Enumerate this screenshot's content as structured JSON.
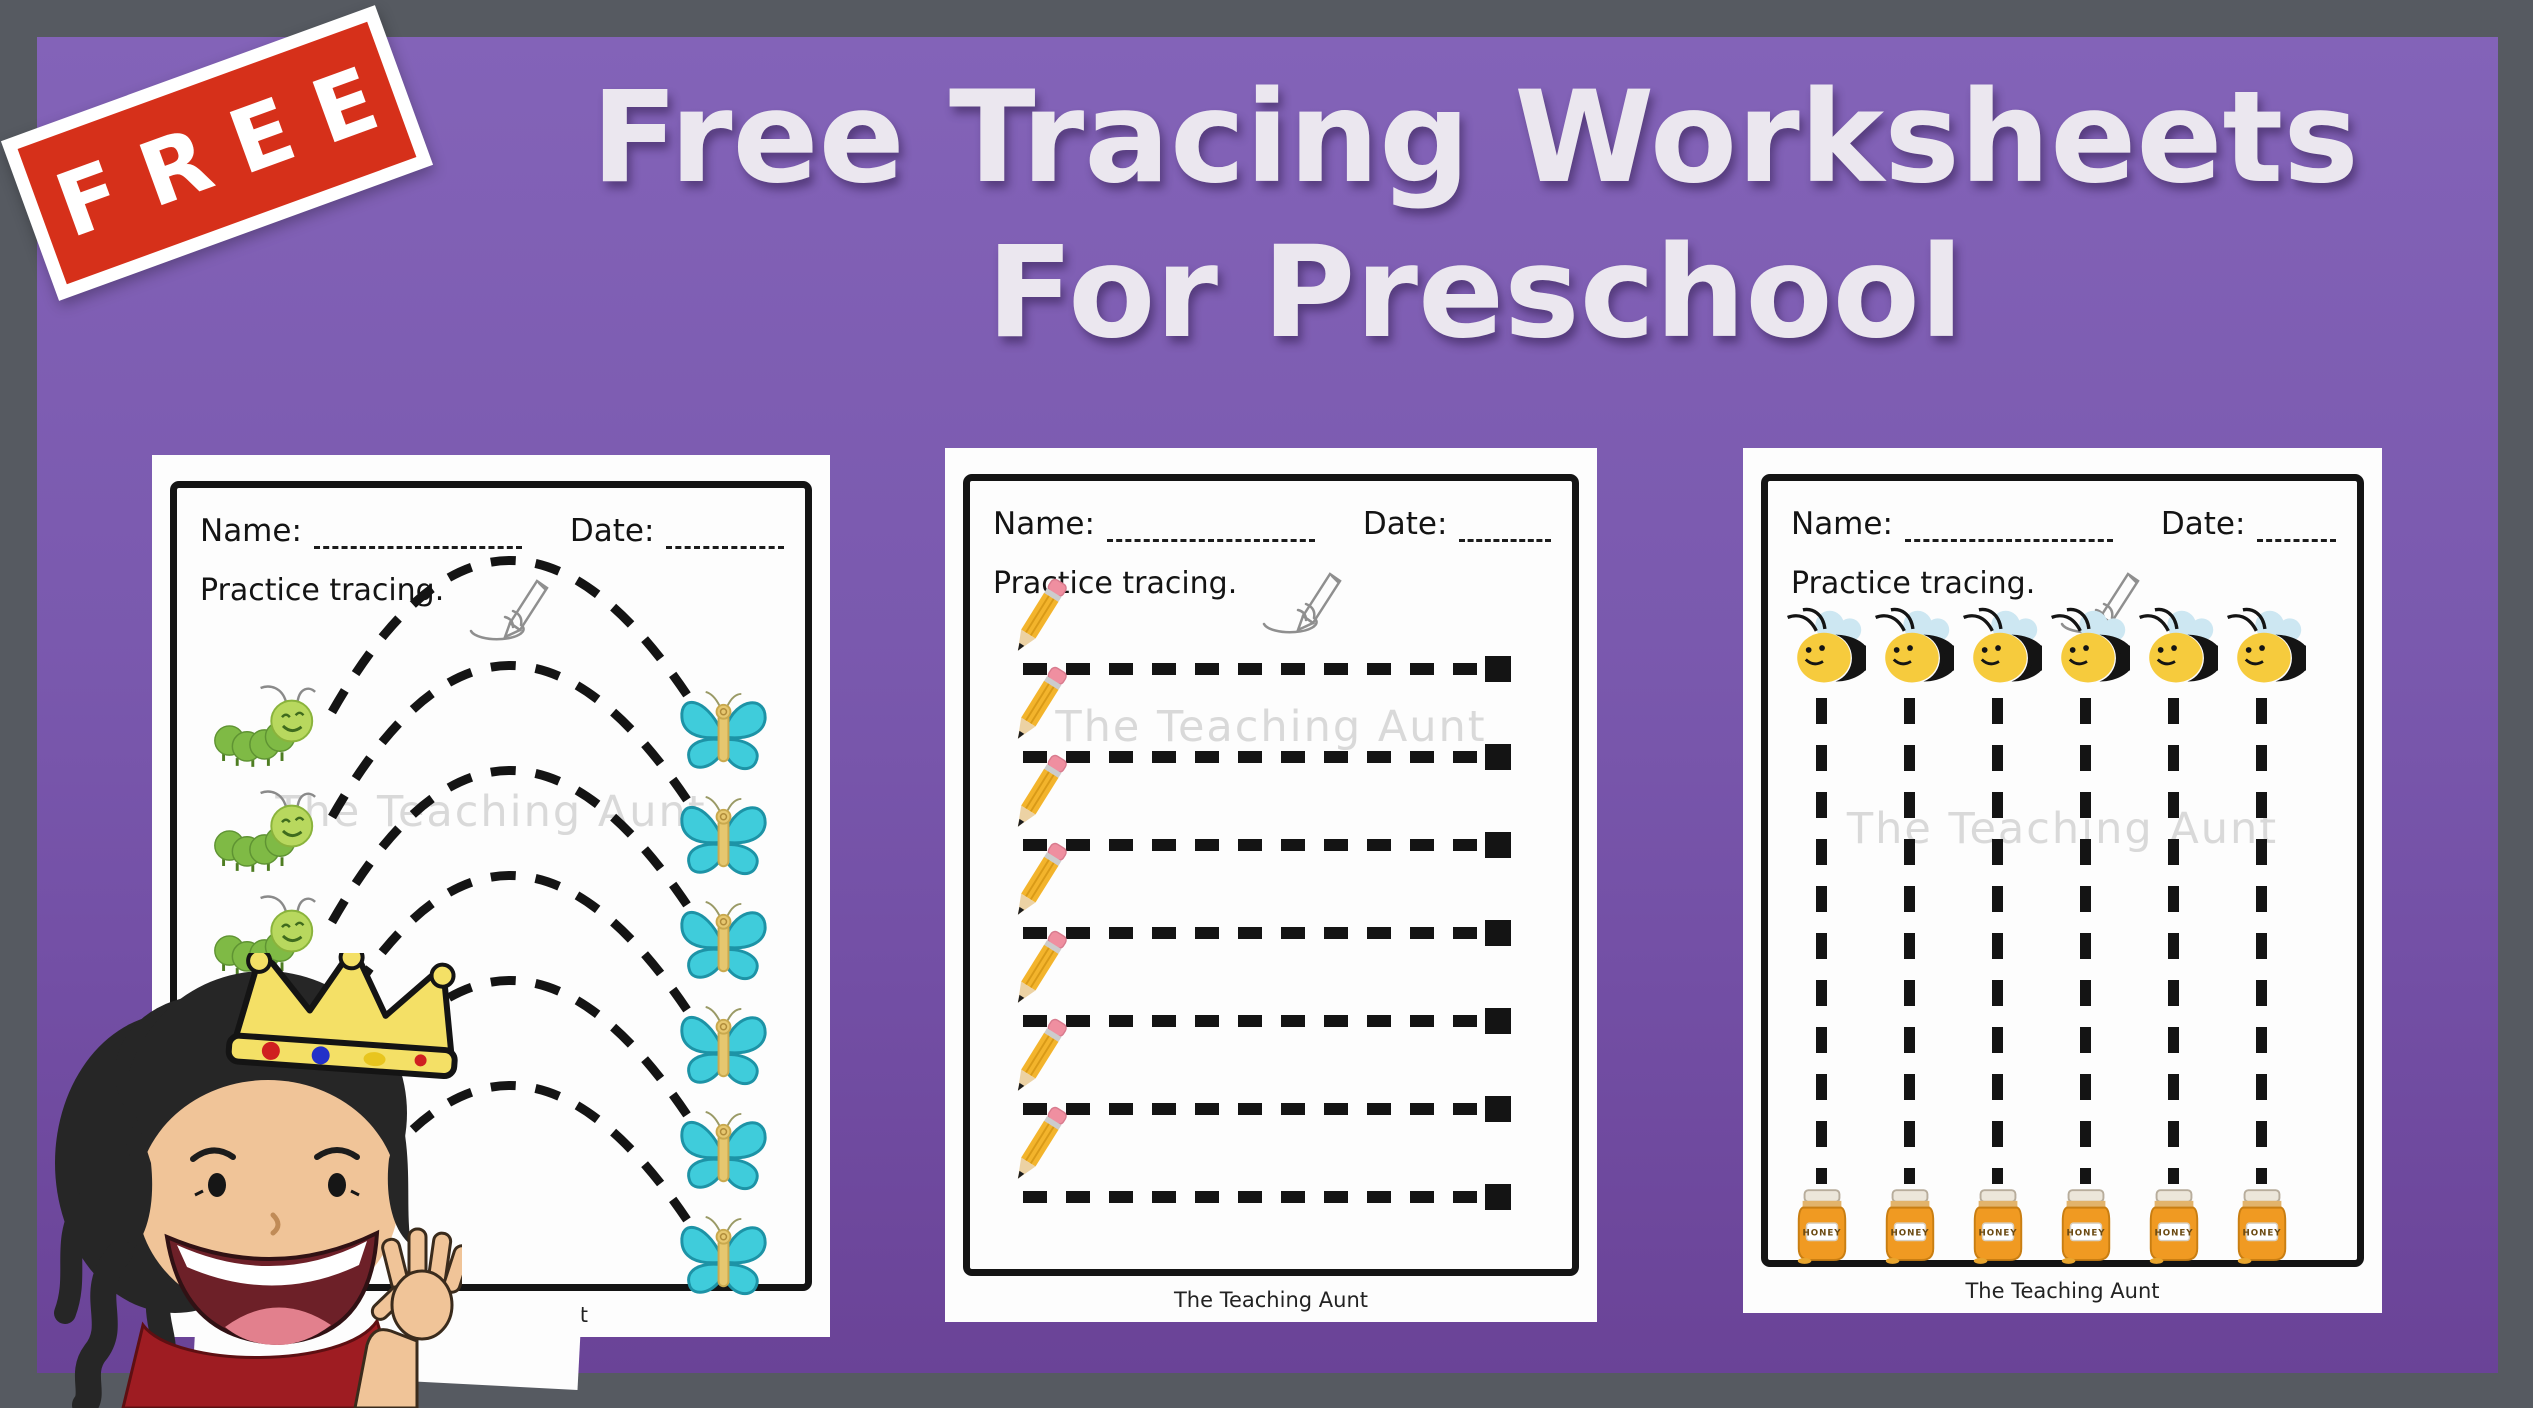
{
  "badge": {
    "label": "FREE"
  },
  "title": {
    "line1": "Free Tracing Worksheets",
    "line2": "For Preschool"
  },
  "colors": {
    "frame": "#565a61",
    "panel_top": "#8363b8",
    "panel_bottom": "#6a4397",
    "badge_red": "#d6301a",
    "title_text": "#ebe7ef",
    "ink": "#141414",
    "watermark": "#d9d9d9",
    "caterpillar_green": "#7fba45",
    "caterpillar_head": "#b8d85e",
    "butterfly_teal": "#3fccdb",
    "bee_yellow": "#f6cb3d",
    "wing_blue": "#cde7f2",
    "honey_orange": "#f09a22",
    "pencil_yellow": "#f3b42c",
    "eraser_pink": "#ef8fa0",
    "crown_gold": "#f4e066",
    "shirt_red": "#9e1c22",
    "skin": "#f0c498",
    "hair": "#262626"
  },
  "worksheets": [
    {
      "name_label": "Name:",
      "date_label": "Date:",
      "practice_label": "Practice tracing.",
      "watermark": "The Teaching Aunt",
      "footer": "The Teaching Aunt",
      "rows": 6,
      "left_icon": "caterpillar-icon",
      "right_icon": "butterfly-icon",
      "line_style": "dashed-arc"
    },
    {
      "name_label": "Name:",
      "date_label": "Date:",
      "practice_label": "Practice tracing.",
      "watermark": "The Teaching Aunt",
      "footer": "The Teaching Aunt",
      "rows": 7,
      "row_icon": "pencil-icon",
      "end_marker": "black-square",
      "line_style": "dashed-horizontal"
    },
    {
      "name_label": "Name:",
      "date_label": "Date:",
      "practice_label": "Practice tracing.",
      "watermark": "The Teaching Aunt",
      "footer": "The Teaching Aunt",
      "columns": 6,
      "top_icon": "bee-icon",
      "bottom_icon": "honey-jar-icon",
      "jar_label": "HONEY",
      "line_style": "dashed-vertical"
    }
  ]
}
